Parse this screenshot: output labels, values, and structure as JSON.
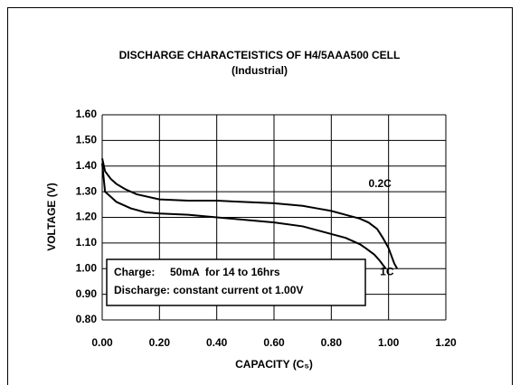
{
  "chart_data": {
    "type": "line",
    "title": "DISCHARGE CHARACTEISTICS OF H4/5AAA500 CELL",
    "subtitle": "(Industrial)",
    "x_label": "CAPACITY (C₅)",
    "y_label": "VOLTAGE (V)",
    "xlim": [
      0,
      1.2
    ],
    "ylim": [
      0.8,
      1.6
    ],
    "xticks": [
      {
        "value": 0,
        "label": "0.00"
      },
      {
        "value": 0.2,
        "label": "0.20"
      },
      {
        "value": 0.4,
        "label": "0.40"
      },
      {
        "value": 0.6,
        "label": "0.60"
      },
      {
        "value": 0.8,
        "label": "0.80"
      },
      {
        "value": 1,
        "label": "1.00"
      },
      {
        "value": 1.2,
        "label": "1.20"
      }
    ],
    "yticks": [
      {
        "value": 0.8,
        "label": "0.80"
      },
      {
        "value": 0.9,
        "label": "0.90"
      },
      {
        "value": 1,
        "label": "1.00"
      },
      {
        "value": 1.1,
        "label": "1.10"
      },
      {
        "value": 1.2,
        "label": "1.20"
      },
      {
        "value": 1.3,
        "label": "1.30"
      },
      {
        "value": 1.4,
        "label": "1.40"
      },
      {
        "value": 1.5,
        "label": "1.50"
      },
      {
        "value": 1.6,
        "label": "1.60"
      }
    ],
    "grid": true,
    "series": [
      {
        "name": "0.2C",
        "color": "#000000",
        "x": [
          0,
          0.01,
          0.03,
          0.05,
          0.08,
          0.12,
          0.2,
          0.3,
          0.4,
          0.5,
          0.6,
          0.7,
          0.75,
          0.8,
          0.85,
          0.9,
          0.93,
          0.96,
          0.98,
          1.0,
          1.01,
          1.02,
          1.03
        ],
        "values": [
          1.43,
          1.38,
          1.35,
          1.33,
          1.31,
          1.29,
          1.27,
          1.265,
          1.265,
          1.26,
          1.255,
          1.245,
          1.235,
          1.225,
          1.21,
          1.195,
          1.18,
          1.155,
          1.12,
          1.08,
          1.05,
          1.02,
          1.0
        ]
      },
      {
        "name": "1C",
        "color": "#000000",
        "x": [
          0,
          0.01,
          0.03,
          0.05,
          0.1,
          0.15,
          0.2,
          0.3,
          0.45,
          0.6,
          0.7,
          0.75,
          0.8,
          0.85,
          0.9,
          0.92,
          0.95,
          0.97,
          0.99
        ],
        "values": [
          1.41,
          1.3,
          1.28,
          1.26,
          1.235,
          1.22,
          1.215,
          1.21,
          1.195,
          1.18,
          1.165,
          1.15,
          1.135,
          1.12,
          1.095,
          1.08,
          1.055,
          1.03,
          1.0
        ]
      }
    ],
    "label_positions": null,
    "notes": [
      "Charge:     50mA  for 14 to 16hrs",
      "Discharge: constant current ot 1.00V"
    ]
  }
}
